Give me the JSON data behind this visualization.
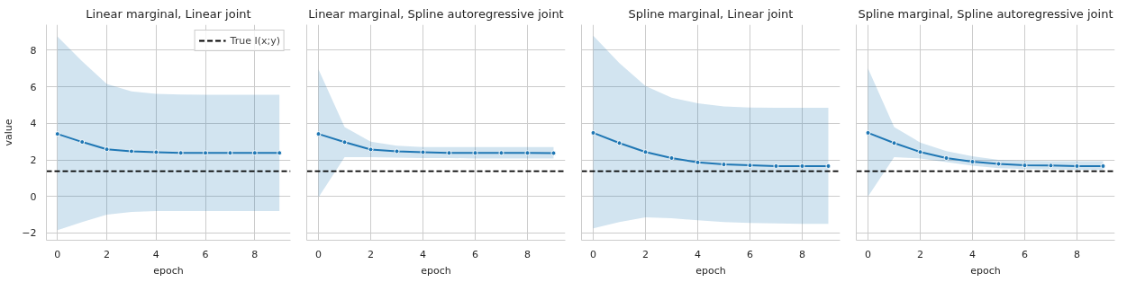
{
  "chart_data": [
    {
      "type": "line",
      "title": "Linear marginal, Linear joint",
      "xlabel": "epoch",
      "ylabel": "value",
      "x": [
        0,
        1,
        2,
        3,
        4,
        5,
        6,
        7,
        8,
        9
      ],
      "xlim": [
        -0.45,
        9.45
      ],
      "xticks": [
        0,
        2,
        4,
        6,
        8
      ],
      "ylim": [
        -2.4,
        9.4
      ],
      "yticks": [
        -2,
        0,
        2,
        4,
        6,
        8
      ],
      "grid": true,
      "marker": "circle",
      "legend": "top right",
      "series": [
        {
          "color": "#1f77b4",
          "values": [
            3.42,
            2.98,
            2.58,
            2.47,
            2.42,
            2.38,
            2.38,
            2.38,
            2.38,
            2.38
          ],
          "lower": [
            -1.85,
            -1.4,
            -1.0,
            -0.85,
            -0.8,
            -0.8,
            -0.8,
            -0.8,
            -0.8,
            -0.8
          ],
          "upper": [
            8.75,
            7.4,
            6.15,
            5.75,
            5.62,
            5.58,
            5.57,
            5.56,
            5.56,
            5.56
          ]
        }
      ],
      "ref_lines": [
        {
          "axis": "y",
          "value": 1.38,
          "label": "True I(x;y)",
          "color": "#000000",
          "line_style": "dashed"
        }
      ]
    },
    {
      "type": "line",
      "title": "Linear marginal, Spline autoregressive joint",
      "xlabel": "epoch",
      "x": [
        0,
        1,
        2,
        3,
        4,
        5,
        6,
        7,
        8,
        9
      ],
      "xlim": [
        -0.45,
        9.45
      ],
      "xticks": [
        0,
        2,
        4,
        6,
        8
      ],
      "ylim": [
        -2.4,
        9.4
      ],
      "yticks": [
        -2,
        0,
        2,
        4,
        6,
        8
      ],
      "grid": true,
      "marker": "circle",
      "tick_labels": "x",
      "series": [
        {
          "color": "#1f77b4",
          "values": [
            3.42,
            2.97,
            2.57,
            2.47,
            2.42,
            2.38,
            2.38,
            2.38,
            2.38,
            2.37
          ],
          "lower": [
            -0.05,
            2.15,
            2.15,
            2.12,
            2.1,
            2.1,
            2.08,
            2.08,
            2.08,
            2.08
          ],
          "upper": [
            6.95,
            3.8,
            3.0,
            2.78,
            2.7,
            2.7,
            2.7,
            2.7,
            2.7,
            2.7
          ]
        }
      ],
      "ref_lines": [
        {
          "axis": "y",
          "value": 1.38,
          "color": "#000000",
          "line_style": "dashed"
        }
      ]
    },
    {
      "type": "line",
      "title": "Spline marginal, Linear joint",
      "xlabel": "epoch",
      "x": [
        0,
        1,
        2,
        3,
        4,
        5,
        6,
        7,
        8,
        9
      ],
      "xlim": [
        -0.45,
        9.45
      ],
      "xticks": [
        0,
        2,
        4,
        6,
        8
      ],
      "ylim": [
        -2.4,
        9.4
      ],
      "yticks": [
        -2,
        0,
        2,
        4,
        6,
        8
      ],
      "grid": true,
      "marker": "circle",
      "tick_labels": "x",
      "series": [
        {
          "color": "#1f77b4",
          "values": [
            3.48,
            2.92,
            2.43,
            2.1,
            1.86,
            1.75,
            1.7,
            1.66,
            1.66,
            1.66
          ],
          "lower": [
            -1.75,
            -1.4,
            -1.15,
            -1.2,
            -1.3,
            -1.4,
            -1.45,
            -1.48,
            -1.5,
            -1.5
          ],
          "upper": [
            8.8,
            7.3,
            6.05,
            5.4,
            5.1,
            4.92,
            4.87,
            4.85,
            4.85,
            4.85
          ]
        }
      ],
      "ref_lines": [
        {
          "axis": "y",
          "value": 1.38,
          "color": "#000000",
          "line_style": "dashed"
        }
      ]
    },
    {
      "type": "line",
      "title": "Spline marginal, Spline autoregressive joint",
      "xlabel": "epoch",
      "x": [
        0,
        1,
        2,
        3,
        4,
        5,
        6,
        7,
        8,
        9
      ],
      "xlim": [
        -0.45,
        9.45
      ],
      "xticks": [
        0,
        2,
        4,
        6,
        8
      ],
      "ylim": [
        -2.4,
        9.4
      ],
      "yticks": [
        -2,
        0,
        2,
        4,
        6,
        8
      ],
      "grid": true,
      "marker": "circle",
      "tick_labels": "x",
      "series": [
        {
          "color": "#1f77b4",
          "values": [
            3.48,
            2.92,
            2.43,
            2.1,
            1.9,
            1.78,
            1.7,
            1.69,
            1.66,
            1.66
          ],
          "lower": [
            0.0,
            2.15,
            2.08,
            1.88,
            1.68,
            1.55,
            1.5,
            1.48,
            1.45,
            1.45
          ],
          "upper": [
            7.0,
            3.8,
            2.95,
            2.48,
            2.2,
            2.0,
            1.95,
            1.93,
            1.93,
            1.93
          ]
        }
      ],
      "ref_lines": [
        {
          "axis": "y",
          "value": 1.38,
          "color": "#000000",
          "line_style": "dashed"
        }
      ]
    }
  ]
}
